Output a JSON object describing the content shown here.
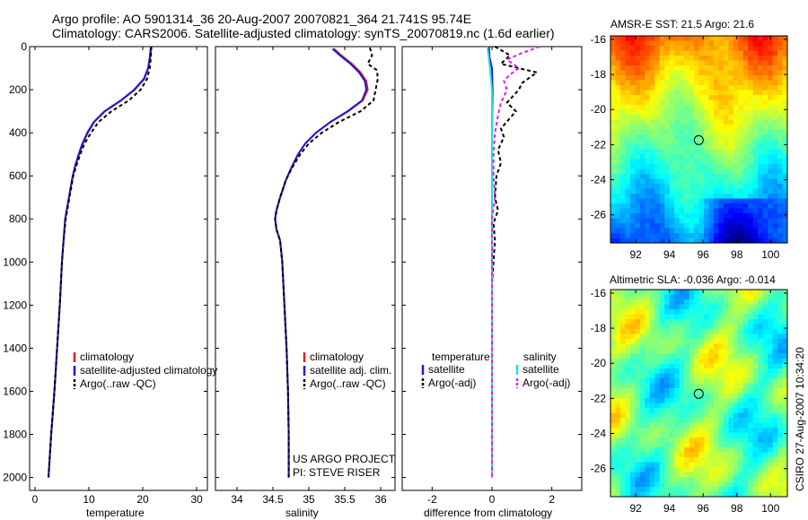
{
  "header": {
    "line1": "Argo profile: AO 5901314_36 20-Aug-2007 20070821_364 21.741S 95.74E",
    "line2": "Climatology: CARS2006. Satellite-adjusted climatology: synTS_20070819.nc (1.6d earlier)"
  },
  "colors": {
    "climatology": "#d62020",
    "satellite": "#1a1ad6",
    "argo": "#000000",
    "sal_satellite": "#22dddd",
    "sal_argo": "#e020e0"
  },
  "chart_data": [
    {
      "type": "line",
      "xlabel": "temperature",
      "xlim": [
        -1,
        32
      ],
      "ylim": [
        2060,
        0
      ],
      "xticks": [
        0,
        10,
        20,
        30
      ],
      "yticks": [
        0,
        200,
        400,
        600,
        800,
        1000,
        1200,
        1400,
        1600,
        1800,
        2000
      ],
      "legend": [
        "climatology",
        "satellite-adjusted climatology",
        "Argo(..raw -QC)"
      ],
      "series": [
        {
          "name": "climatology",
          "color": "#d62020",
          "dash": "",
          "points": [
            [
              21.6,
              0
            ],
            [
              21.4,
              50
            ],
            [
              21.0,
              100
            ],
            [
              20.3,
              150
            ],
            [
              18.5,
              200
            ],
            [
              16.0,
              250
            ],
            [
              13.0,
              300
            ],
            [
              11.0,
              350
            ],
            [
              9.8,
              400
            ],
            [
              8.9,
              450
            ],
            [
              8.2,
              500
            ],
            [
              7.5,
              550
            ],
            [
              7.0,
              600
            ],
            [
              6.3,
              700
            ],
            [
              5.6,
              800
            ],
            [
              5.3,
              900
            ],
            [
              5.0,
              1000
            ],
            [
              4.6,
              1200
            ],
            [
              4.1,
              1400
            ],
            [
              3.6,
              1600
            ],
            [
              3.0,
              1800
            ],
            [
              2.5,
              2000
            ]
          ]
        },
        {
          "name": "satellite-adjusted climatology",
          "color": "#1a1ad6",
          "dash": "",
          "points": [
            [
              21.5,
              0
            ],
            [
              21.3,
              50
            ],
            [
              21.0,
              100
            ],
            [
              20.2,
              150
            ],
            [
              18.4,
              200
            ],
            [
              15.9,
              250
            ],
            [
              12.9,
              300
            ],
            [
              10.9,
              350
            ],
            [
              9.7,
              400
            ],
            [
              8.8,
              450
            ],
            [
              8.1,
              500
            ],
            [
              7.5,
              550
            ],
            [
              7.0,
              600
            ],
            [
              6.3,
              700
            ],
            [
              5.6,
              800
            ],
            [
              5.3,
              900
            ],
            [
              5.0,
              1000
            ],
            [
              4.6,
              1200
            ],
            [
              4.1,
              1400
            ],
            [
              3.6,
              1600
            ],
            [
              3.0,
              1800
            ],
            [
              2.5,
              2000
            ]
          ]
        },
        {
          "name": "Argo(..raw -QC)",
          "color": "#000000",
          "dash": "4,3",
          "points": [
            [
              21.6,
              0
            ],
            [
              21.5,
              50
            ],
            [
              21.3,
              100
            ],
            [
              20.8,
              150
            ],
            [
              19.6,
              200
            ],
            [
              17.4,
              250
            ],
            [
              14.2,
              300
            ],
            [
              11.8,
              350
            ],
            [
              10.4,
              400
            ],
            [
              9.2,
              450
            ],
            [
              8.4,
              500
            ],
            [
              7.7,
              550
            ],
            [
              7.1,
              600
            ],
            [
              6.4,
              700
            ],
            [
              5.7,
              800
            ],
            [
              5.3,
              900
            ],
            [
              5.0,
              1000
            ],
            [
              4.6,
              1200
            ],
            [
              4.1,
              1400
            ],
            [
              3.6,
              1600
            ],
            [
              3.0,
              1800
            ],
            [
              2.5,
              2000
            ]
          ]
        }
      ]
    },
    {
      "type": "line",
      "xlabel": "salinity",
      "xlim": [
        33.7,
        36.2
      ],
      "ylim": [
        2060,
        0
      ],
      "xticks": [
        34,
        34.5,
        35,
        35.5,
        36
      ],
      "yticks": [
        0,
        200,
        400,
        600,
        800,
        1000,
        1200,
        1400,
        1600,
        1800,
        2000
      ],
      "legend": [
        "climatology",
        "satellite adj. clim.",
        "Argo(..raw -QC)"
      ],
      "annotation": [
        "US ARGO PROJECT",
        "PI: STEVE RISER"
      ],
      "series": [
        {
          "name": "climatology",
          "color": "#d62020",
          "dash": "",
          "points": [
            [
              35.35,
              10
            ],
            [
              35.45,
              40
            ],
            [
              35.6,
              80
            ],
            [
              35.72,
              120
            ],
            [
              35.8,
              160
            ],
            [
              35.82,
              200
            ],
            [
              35.75,
              250
            ],
            [
              35.55,
              300
            ],
            [
              35.3,
              350
            ],
            [
              35.1,
              400
            ],
            [
              34.95,
              450
            ],
            [
              34.85,
              500
            ],
            [
              34.76,
              560
            ],
            [
              34.68,
              620
            ],
            [
              34.6,
              700
            ],
            [
              34.55,
              760
            ],
            [
              34.53,
              800
            ],
            [
              34.55,
              850
            ],
            [
              34.6,
              900
            ],
            [
              34.63,
              1000
            ],
            [
              34.66,
              1200
            ],
            [
              34.69,
              1400
            ],
            [
              34.71,
              1600
            ],
            [
              34.72,
              1800
            ],
            [
              34.72,
              2000
            ]
          ]
        },
        {
          "name": "satellite adj. clim.",
          "color": "#1a1ad6",
          "dash": "",
          "points": [
            [
              35.33,
              10
            ],
            [
              35.43,
              40
            ],
            [
              35.58,
              80
            ],
            [
              35.7,
              120
            ],
            [
              35.78,
              160
            ],
            [
              35.8,
              200
            ],
            [
              35.74,
              250
            ],
            [
              35.54,
              300
            ],
            [
              35.3,
              350
            ],
            [
              35.1,
              400
            ],
            [
              34.95,
              450
            ],
            [
              34.85,
              500
            ],
            [
              34.76,
              560
            ],
            [
              34.68,
              620
            ],
            [
              34.6,
              700
            ],
            [
              34.55,
              760
            ],
            [
              34.53,
              800
            ],
            [
              34.55,
              850
            ],
            [
              34.6,
              900
            ],
            [
              34.63,
              1000
            ],
            [
              34.66,
              1200
            ],
            [
              34.69,
              1400
            ],
            [
              34.71,
              1600
            ],
            [
              34.72,
              1800
            ],
            [
              34.72,
              2000
            ]
          ]
        },
        {
          "name": "Argo(..raw -QC)",
          "color": "#000000",
          "dash": "4,3",
          "points": [
            [
              35.85,
              5
            ],
            [
              35.88,
              40
            ],
            [
              35.82,
              80
            ],
            [
              35.95,
              110
            ],
            [
              35.96,
              150
            ],
            [
              35.93,
              200
            ],
            [
              35.9,
              250
            ],
            [
              35.72,
              300
            ],
            [
              35.42,
              350
            ],
            [
              35.18,
              400
            ],
            [
              35.0,
              450
            ],
            [
              34.88,
              500
            ],
            [
              34.77,
              560
            ],
            [
              34.68,
              620
            ],
            [
              34.6,
              700
            ],
            [
              34.55,
              760
            ],
            [
              34.53,
              800
            ],
            [
              34.55,
              850
            ],
            [
              34.6,
              900
            ],
            [
              34.63,
              1000
            ],
            [
              34.66,
              1200
            ],
            [
              34.69,
              1400
            ],
            [
              34.71,
              1600
            ],
            [
              34.72,
              1800
            ],
            [
              34.72,
              2000
            ]
          ]
        }
      ]
    },
    {
      "type": "line",
      "xlabel": "difference from climatology",
      "xlim": [
        -3,
        3
      ],
      "ylim": [
        2060,
        0
      ],
      "xticks": [
        -2,
        0,
        2
      ],
      "yticks": [
        0,
        200,
        400,
        600,
        800,
        1000,
        1200,
        1400,
        1600,
        1800,
        2000
      ],
      "legend": {
        "temperature": {
          "heading": "temperature",
          "items": [
            "satellite",
            "Argo(-adj)"
          ]
        },
        "salinity": {
          "heading": "salinity",
          "items": [
            "satellite",
            "Argo(-adj)"
          ]
        }
      },
      "series": [
        {
          "name": "temperature satellite",
          "color": "#1a1ad6",
          "dash": "",
          "points": [
            [
              -0.1,
              0
            ],
            [
              -0.08,
              50
            ],
            [
              0,
              100
            ],
            [
              0.02,
              200
            ],
            [
              0.01,
              300
            ],
            [
              0,
              500
            ],
            [
              0,
              2000
            ]
          ]
        },
        {
          "name": "temperature Argo(-adj)",
          "color": "#000000",
          "dash": "4,3",
          "points": [
            [
              0.1,
              0
            ],
            [
              0.6,
              40
            ],
            [
              0.3,
              80
            ],
            [
              1.5,
              120
            ],
            [
              1.0,
              170
            ],
            [
              0.9,
              200
            ],
            [
              0.5,
              260
            ],
            [
              0.8,
              300
            ],
            [
              0.3,
              380
            ],
            [
              0.4,
              420
            ],
            [
              0.2,
              480
            ],
            [
              0.3,
              540
            ],
            [
              0.15,
              600
            ],
            [
              0.1,
              700
            ],
            [
              0.2,
              760
            ],
            [
              0.05,
              820
            ],
            [
              0.1,
              900
            ],
            [
              0.05,
              1000
            ],
            [
              0.0,
              1100
            ],
            [
              0.0,
              2000
            ]
          ]
        },
        {
          "name": "salinity satellite",
          "color": "#22dddd",
          "dash": "",
          "points": [
            [
              -0.15,
              0
            ],
            [
              -0.1,
              60
            ],
            [
              -0.05,
              120
            ],
            [
              0,
              200
            ],
            [
              0,
              400
            ],
            [
              0,
              800
            ],
            [
              0,
              2000
            ]
          ]
        },
        {
          "name": "salinity Argo(-adj)",
          "color": "#e020e0",
          "dash": "4,3",
          "points": [
            [
              1.6,
              0
            ],
            [
              1.0,
              30
            ],
            [
              0.5,
              60
            ],
            [
              0.9,
              100
            ],
            [
              0.6,
              130
            ],
            [
              0.4,
              160
            ],
            [
              0.5,
              200
            ],
            [
              0.3,
              260
            ],
            [
              0.2,
              320
            ],
            [
              0.1,
              400
            ],
            [
              0.05,
              500
            ],
            [
              0.05,
              600
            ],
            [
              0.1,
              700
            ],
            [
              0.0,
              800
            ],
            [
              0.0,
              2000
            ]
          ]
        }
      ]
    },
    {
      "type": "heatmap",
      "title": "AMSR-E SST: 21.5 Argo: 21.6",
      "xlim": [
        90.5,
        101
      ],
      "ylim": [
        -27.6,
        -15.8
      ],
      "xticks": [
        92,
        94,
        96,
        98,
        100
      ],
      "yticks": [
        -16,
        -18,
        -20,
        -22,
        -24,
        -26
      ],
      "marker": [
        95.74,
        -21.741
      ]
    },
    {
      "type": "heatmap",
      "title": "Altimetric SLA: -0.036 Argo: -0.014",
      "xlim": [
        90.5,
        101
      ],
      "ylim": [
        -27.6,
        -15.8
      ],
      "xticks": [
        92,
        94,
        96,
        98,
        100
      ],
      "yticks": [
        -16,
        -18,
        -20,
        -22,
        -24,
        -26
      ],
      "marker": [
        95.74,
        -21.741
      ]
    }
  ],
  "footer_right": "CSIRO 27-Aug-2007 10:34:20"
}
